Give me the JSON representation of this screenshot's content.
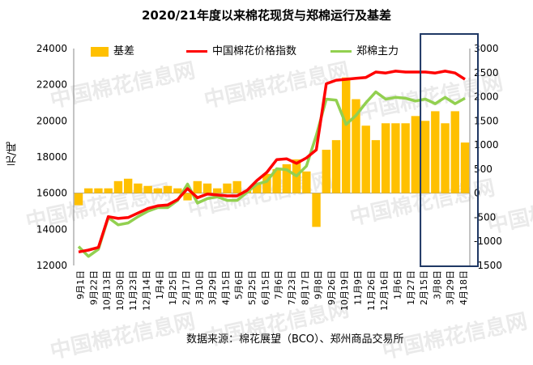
{
  "watermark": "中国棉花信息网",
  "chart_data": {
    "type": "line",
    "title": "2020/21年度以来棉花现货与郑棉运行及基差",
    "ylabel": "元/吨",
    "y2label": "",
    "source": "数据来源：棉花展望（BCO）、郑州商品交易所",
    "ylim": [
      12000,
      24000
    ],
    "y2lim": [
      -1500,
      3000
    ],
    "yticks": [
      12000,
      14000,
      16000,
      18000,
      20000,
      22000,
      24000
    ],
    "y2ticks": [
      -1500,
      -1000,
      -500,
      0,
      500,
      1000,
      1500,
      2000,
      2500,
      3000
    ],
    "xticks": [
      "9月1日",
      "9月22日",
      "10月13日",
      "10月30日",
      "11月23日",
      "12月14日",
      "1月4日",
      "1月25日",
      "2月17日",
      "3月10日",
      "3月29日",
      "4月15日",
      "5月6日",
      "5月25日",
      "6月15日",
      "7月6日",
      "7月23日",
      "8月17日",
      "9月8日",
      "9月26日",
      "10月19日",
      "11月9日",
      "11月26日",
      "12月16日",
      "1月6日",
      "1月27日",
      "2月15日",
      "3月8日",
      "3月29日",
      "4月18日"
    ],
    "series": [
      {
        "name": "中国棉花价格指数",
        "color": "#ff0000",
        "axis": "left",
        "values": [
          12750,
          12850,
          13000,
          14700,
          14600,
          14650,
          14900,
          15150,
          15300,
          15350,
          15650,
          16250,
          15750,
          15950,
          15900,
          15850,
          15850,
          16150,
          16700,
          17150,
          17850,
          17900,
          17650,
          17950,
          18400,
          22050,
          22250,
          22300,
          22350,
          22400,
          22700,
          22650,
          22750,
          22700,
          22700,
          22700,
          22650,
          22750,
          22650,
          22300
        ]
      },
      {
        "name": "郑棉主力",
        "color": "#92d050",
        "axis": "left",
        "values": [
          13050,
          12500,
          12900,
          14650,
          14250,
          14350,
          14700,
          15000,
          15200,
          15200,
          15600,
          16500,
          15450,
          15700,
          15800,
          15600,
          15600,
          16050,
          16500,
          16650,
          17350,
          17300,
          16950,
          17500,
          19200,
          21200,
          21150,
          19800,
          20300,
          21000,
          21600,
          21200,
          21300,
          21250,
          21100,
          21200,
          20950,
          21300,
          20950,
          21250
        ]
      },
      {
        "name": "基差",
        "color": "#ffc000",
        "axis": "right",
        "type": "bar",
        "values": [
          -250,
          100,
          100,
          100,
          250,
          300,
          200,
          150,
          100,
          150,
          100,
          -150,
          250,
          200,
          100,
          200,
          250,
          50,
          200,
          400,
          500,
          600,
          700,
          450,
          -700,
          900,
          1100,
          2400,
          1950,
          1400,
          1100,
          1450,
          1450,
          1450,
          1600,
          1500,
          1700,
          1450,
          1700,
          1050
        ]
      }
    ],
    "annotations": [
      {
        "type": "box",
        "label": "",
        "from_index": 35,
        "to_index": 39
      }
    ],
    "legend": "top",
    "grid": false
  }
}
